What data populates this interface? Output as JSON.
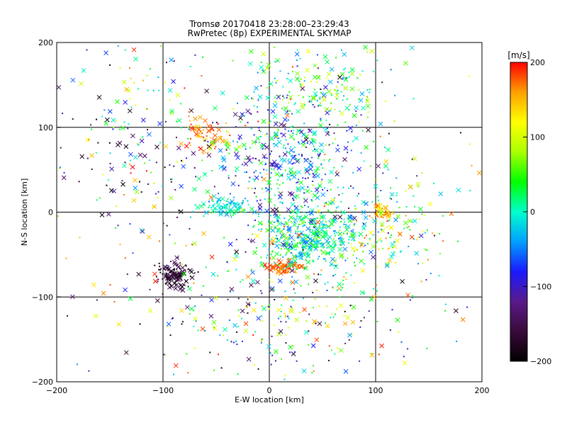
{
  "title_line1": "Tromsø 20170418 23:28:00–23:29:43",
  "title_line2": "RwPretec (8p) EXPERIMENTAL SKYMAP",
  "chart_data": {
    "type": "scatter",
    "xlabel": "E-W location [km]",
    "ylabel": "N-S location [km]",
    "xlim": [
      -200,
      200
    ],
    "ylim": [
      -200,
      200
    ],
    "xticks": [
      -200,
      -100,
      0,
      100,
      200
    ],
    "yticks": [
      -200,
      -100,
      0,
      100,
      200
    ],
    "grid": true,
    "colorbar": {
      "label": "[m/s]",
      "range": [
        -200,
        200
      ],
      "ticks": [
        -200,
        -100,
        0,
        100,
        200
      ],
      "colormap": [
        "#000000",
        "#3a0a3a",
        "#5a1a8a",
        "#1a1aff",
        "#00a0ff",
        "#00ffcc",
        "#00ff00",
        "#aaff00",
        "#ffff00",
        "#ffa000",
        "#ff0000"
      ]
    },
    "clusters": [
      {
        "cx": -90,
        "cy": -75,
        "sx": 8,
        "sy": 8,
        "n": 140,
        "vmin": -200,
        "vmax": -140
      },
      {
        "cx": 15,
        "cy": -65,
        "sx": 8,
        "sy": 4,
        "n": 90,
        "vmin": 150,
        "vmax": 200
      },
      {
        "cx": 40,
        "cy": -30,
        "sx": 25,
        "sy": 20,
        "n": 420,
        "vmin": -60,
        "vmax": 70
      },
      {
        "cx": 20,
        "cy": 60,
        "sx": 35,
        "sy": 40,
        "n": 420,
        "vmin": -140,
        "vmax": 60
      },
      {
        "cx": -40,
        "cy": 5,
        "sx": 12,
        "sy": 6,
        "n": 90,
        "vmin": -40,
        "vmax": 30
      },
      {
        "cx": -60,
        "cy": 90,
        "sx": 12,
        "sy": 10,
        "n": 70,
        "vmin": 130,
        "vmax": 200
      },
      {
        "cx": 105,
        "cy": 0,
        "sx": 5,
        "sy": 5,
        "n": 45,
        "vmin": 90,
        "vmax": 200
      },
      {
        "cx": 120,
        "cy": -20,
        "sx": 25,
        "sy": 30,
        "n": 120,
        "vmin": -50,
        "vmax": 180
      },
      {
        "cx": 50,
        "cy": 150,
        "sx": 35,
        "sy": 25,
        "n": 160,
        "vmin": -40,
        "vmax": 120
      },
      {
        "cx": -130,
        "cy": 80,
        "sx": 40,
        "sy": 50,
        "n": 150,
        "vmin": -200,
        "vmax": 200
      },
      {
        "cx": 0,
        "cy": -130,
        "sx": 60,
        "sy": 35,
        "n": 200,
        "vmin": -200,
        "vmax": 200
      },
      {
        "cx": 0,
        "cy": 0,
        "sx": 110,
        "sy": 110,
        "n": 420,
        "vmin": -200,
        "vmax": 200
      }
    ]
  }
}
